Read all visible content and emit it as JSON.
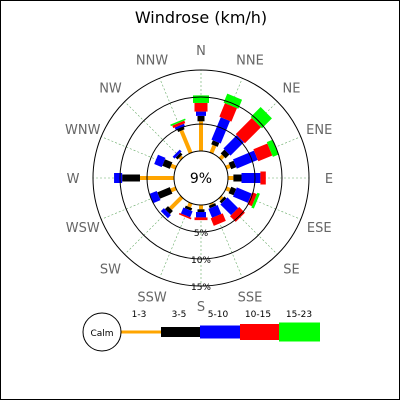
{
  "chart_data": {
    "type": "windrose",
    "title": "Windrose (km/h)",
    "center_label": "9%",
    "calm_label": "Calm",
    "directions": [
      "N",
      "NNE",
      "NE",
      "ENE",
      "E",
      "ESE",
      "SE",
      "SSE",
      "S",
      "SSW",
      "SW",
      "WSW",
      "W",
      "WNW",
      "NW",
      "NNW"
    ],
    "ring_labels": [
      "5%",
      "10%",
      "15%"
    ],
    "rings": [
      5,
      10,
      15
    ],
    "speed_bins": [
      {
        "label": "1-3",
        "color": "#ffa500"
      },
      {
        "label": "3-5",
        "color": "#000000"
      },
      {
        "label": "5-10",
        "color": "#0000ff"
      },
      {
        "label": "10-15",
        "color": "#ff0000"
      },
      {
        "label": "15-23",
        "color": "#00ff00"
      }
    ],
    "frequencies": [
      {
        "direction": "N",
        "values": [
          5.5,
          1.0,
          0.8,
          1.6,
          1.4
        ]
      },
      {
        "direction": "NNE",
        "values": [
          1.5,
          0.8,
          4.5,
          2.7,
          1.8
        ]
      },
      {
        "direction": "NE",
        "values": [
          0.8,
          1.0,
          3.5,
          4.2,
          2.6
        ]
      },
      {
        "direction": "ENE",
        "values": [
          0.8,
          1.0,
          4.2,
          2.8,
          1.2
        ]
      },
      {
        "direction": "E",
        "values": [
          1.0,
          1.5,
          3.5,
          1.0,
          0.0
        ]
      },
      {
        "direction": "ESE",
        "values": [
          0.8,
          1.0,
          3.0,
          0.9,
          0.5
        ]
      },
      {
        "direction": "SE",
        "values": [
          0.5,
          0.5,
          2.8,
          1.5,
          0.0
        ]
      },
      {
        "direction": "SSE",
        "values": [
          0.3,
          0.5,
          1.8,
          1.5,
          0.0
        ]
      },
      {
        "direction": "S",
        "values": [
          0.8,
          0.5,
          1.0,
          0.5,
          0.0
        ]
      },
      {
        "direction": "SSW",
        "values": [
          0.8,
          0.5,
          1.2,
          0.3,
          0.0
        ]
      },
      {
        "direction": "SW",
        "values": [
          3.0,
          0.8,
          0.8,
          0.0,
          0.0
        ]
      },
      {
        "direction": "WSW",
        "values": [
          1.0,
          2.5,
          1.5,
          0.0,
          0.0
        ]
      },
      {
        "direction": "W",
        "values": [
          6.3,
          3.3,
          1.5,
          0.0,
          0.0
        ]
      },
      {
        "direction": "WNW",
        "values": [
          1.0,
          1.5,
          1.5,
          0.0,
          0.0
        ]
      },
      {
        "direction": "NW",
        "values": [
          0.5,
          0.5,
          0.5,
          0.0,
          0.0
        ]
      },
      {
        "direction": "NNW",
        "values": [
          4.5,
          0.5,
          0.5,
          0.5,
          0.3
        ]
      }
    ],
    "grid": true
  }
}
